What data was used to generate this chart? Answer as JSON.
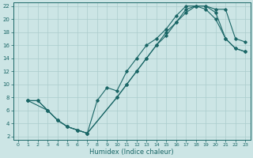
{
  "xlabel": "Humidex (Indice chaleur)",
  "bg_color": "#cce5e5",
  "grid_color": "#aacccc",
  "line_color": "#1a6666",
  "xlim": [
    -0.5,
    23.5
  ],
  "ylim": [
    1.5,
    22.5
  ],
  "xticks": [
    0,
    1,
    2,
    3,
    4,
    5,
    6,
    7,
    8,
    9,
    10,
    11,
    12,
    13,
    14,
    15,
    16,
    17,
    18,
    19,
    20,
    21,
    22,
    23
  ],
  "yticks": [
    2,
    4,
    6,
    8,
    10,
    12,
    14,
    16,
    18,
    20,
    22
  ],
  "curve1_x": [
    1,
    2,
    3,
    4,
    5,
    6,
    7,
    8,
    9,
    10,
    11,
    12,
    13,
    14,
    15,
    16,
    17,
    18,
    19,
    20,
    21,
    22,
    23
  ],
  "curve1_y": [
    7.5,
    7.5,
    6.0,
    4.5,
    3.5,
    3.0,
    2.5,
    7.5,
    9.5,
    9.0,
    12.0,
    14.0,
    16.0,
    17.0,
    18.5,
    20.5,
    22.0,
    22.0,
    22.0,
    21.5,
    21.5,
    17.0,
    16.5
  ],
  "curve2_x": [
    1,
    2,
    3,
    4,
    5,
    6,
    7,
    10,
    11,
    12,
    13,
    14,
    15,
    16,
    17,
    18,
    19,
    20,
    21,
    22,
    23
  ],
  "curve2_y": [
    7.5,
    7.5,
    6.0,
    4.5,
    3.5,
    3.0,
    2.5,
    8.0,
    10.0,
    12.0,
    14.0,
    16.0,
    18.0,
    19.5,
    21.5,
    22.0,
    22.0,
    21.0,
    17.0,
    15.5,
    15.0
  ],
  "curve3_x": [
    1,
    3,
    4,
    5,
    6,
    7,
    10,
    11,
    12,
    13,
    14,
    15,
    16,
    17,
    18,
    19,
    20,
    21,
    22,
    23
  ],
  "curve3_y": [
    7.5,
    6.0,
    4.5,
    3.5,
    3.0,
    2.5,
    8.0,
    10.0,
    12.0,
    14.0,
    16.0,
    17.5,
    19.5,
    21.0,
    22.0,
    21.5,
    20.0,
    17.0,
    15.5,
    15.0
  ]
}
